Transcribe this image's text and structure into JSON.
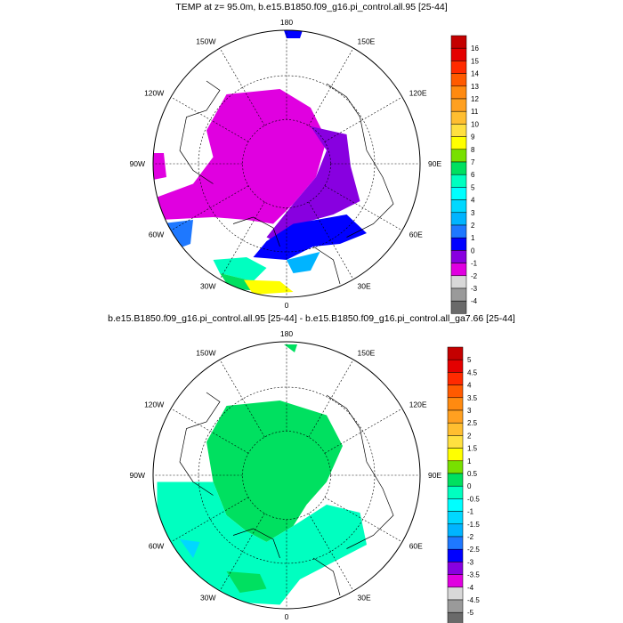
{
  "panels": [
    {
      "title": "TEMP at z=  95.0m, b.e15.B1850.f09_g16.pi_control.all.95 [25-44]",
      "lon_labels": [
        "180",
        "150E",
        "120E",
        "90E",
        "60E",
        "30E",
        "0",
        "30W",
        "60W",
        "90W",
        "120W",
        "150W"
      ],
      "colorbar": {
        "labels": [
          "16",
          "15",
          "14",
          "13",
          "12",
          "11",
          "10",
          "9",
          "8",
          "7",
          "6",
          "5",
          "4",
          "3",
          "2",
          "1",
          "0",
          "-1",
          "-2",
          "-3",
          "-4"
        ],
        "colors": [
          "#c40000",
          "#e40000",
          "#ff2a00",
          "#ff5a00",
          "#ff8a10",
          "#ffa020",
          "#ffbe30",
          "#ffe040",
          "#ffff00",
          "#78e000",
          "#00e060",
          "#00ffc0",
          "#00ffff",
          "#00d8ff",
          "#00b4ff",
          "#1e78ff",
          "#0000ff",
          "#8800e0",
          "#e000e0",
          "#d8d8d8",
          "#9a9a9a",
          "#6a6a6a"
        ]
      }
    },
    {
      "title": "b.e15.B1850.f09_g16.pi_control.all.95 [25-44] - b.e15.B1850.f09_g16.pi_control.all_ga7.66 [25-44]",
      "lon_labels": [
        "180",
        "150E",
        "120E",
        "90E",
        "60E",
        "30E",
        "0",
        "30W",
        "60W",
        "90W",
        "120W",
        "150W"
      ],
      "colorbar": {
        "labels": [
          "5",
          "4.5",
          "4",
          "3.5",
          "3",
          "2.5",
          "2",
          "1.5",
          "1",
          "0.5",
          "0",
          "-0.5",
          "-1",
          "-1.5",
          "-2",
          "-2.5",
          "-3",
          "-3.5",
          "-4",
          "-4.5",
          "-5"
        ],
        "colors": [
          "#c40000",
          "#e40000",
          "#ff2a00",
          "#ff5a00",
          "#ff8a10",
          "#ffa020",
          "#ffbe30",
          "#ffe040",
          "#ffff00",
          "#78e000",
          "#00e060",
          "#00ffc0",
          "#00ffff",
          "#00d8ff",
          "#00b4ff",
          "#1e78ff",
          "#0000ff",
          "#8800e0",
          "#e000e0",
          "#d8d8d8",
          "#9a9a9a",
          "#6a6a6a"
        ]
      }
    }
  ]
}
